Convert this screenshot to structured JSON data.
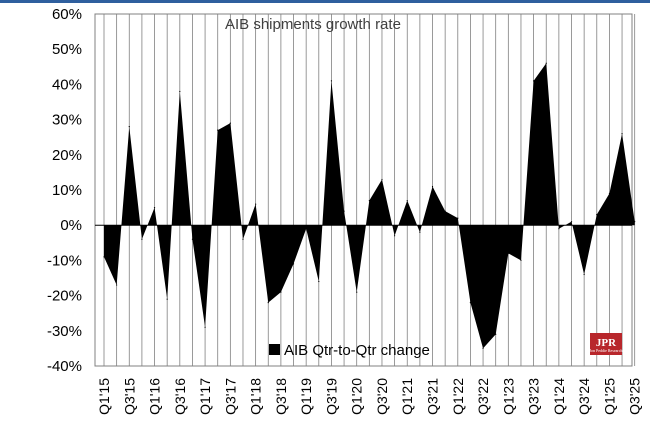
{
  "chart_data": {
    "type": "area",
    "title": "AIB shipments growth rate",
    "xlabel": "",
    "ylabel": "",
    "ylim": [
      -40,
      60
    ],
    "yticks": [
      "-40%",
      "-30%",
      "-20%",
      "-10%",
      "0%",
      "10%",
      "20%",
      "30%",
      "40%",
      "50%",
      "60%"
    ],
    "ytick_values": [
      -40,
      -30,
      -20,
      -10,
      0,
      10,
      20,
      30,
      40,
      50,
      60
    ],
    "x": [
      "Q1'15",
      "Q2'15",
      "Q3'15",
      "Q4'15",
      "Q1'16",
      "Q2'16",
      "Q3'16",
      "Q4'16",
      "Q1'17",
      "Q2'17",
      "Q3'17",
      "Q4'17",
      "Q1'18",
      "Q2'18",
      "Q3'18",
      "Q4'18",
      "Q1'19",
      "Q2'19",
      "Q3'19",
      "Q4'19",
      "Q1'20",
      "Q2'20",
      "Q3'20",
      "Q4'20",
      "Q1'21",
      "Q2'21",
      "Q3'21",
      "Q4'21",
      "Q1'22",
      "Q2'22",
      "Q3'22",
      "Q4'22",
      "Q1'23",
      "Q2'23",
      "Q3'23",
      "Q4'23",
      "Q1'24",
      "Q2'24",
      "Q3'24",
      "Q4'24",
      "Q1'25",
      "Q2'25",
      "Q3'25"
    ],
    "xtick_labels": [
      "Q1'15",
      "Q3'15",
      "Q1'16",
      "Q3'16",
      "Q1'17",
      "Q3'17",
      "Q1'18",
      "Q3'18",
      "Q1'19",
      "Q3'19",
      "Q1'20",
      "Q3'20",
      "Q1'21",
      "Q3'21",
      "Q1'22",
      "Q3'22",
      "Q1'23",
      "Q3'23",
      "Q1'24",
      "Q3'24",
      "Q1'25",
      "Q3'25"
    ],
    "series": [
      {
        "name": "AIB Qtr-to-Qtr change",
        "color": "#000000",
        "values": [
          -9,
          -17,
          28,
          -4,
          5,
          -21,
          38,
          -4,
          -29,
          27,
          29,
          -4,
          6,
          -22,
          -19,
          -11,
          -1,
          -16,
          41,
          4,
          -19,
          7,
          13,
          -3,
          7,
          -2,
          11,
          4,
          2,
          -22,
          -35,
          -31,
          -8,
          -10,
          41,
          46,
          -1,
          1,
          -14,
          3,
          9,
          26,
          1
        ]
      }
    ],
    "grid": "vertical",
    "legend": "bottom-left"
  },
  "logo": {
    "text": "JPR",
    "subtext": "Jon Peddie Research"
  },
  "colors": {
    "frame": "#2f5f9e",
    "grid": "#808080",
    "fill": "#000000",
    "logo_bg": "#b8272c"
  }
}
